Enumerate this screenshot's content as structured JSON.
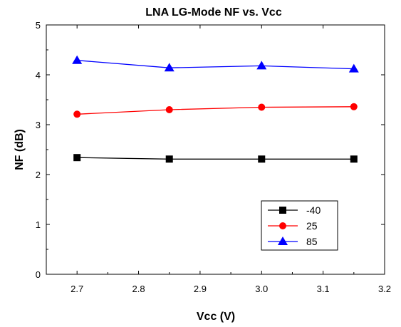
{
  "chart_data": {
    "type": "line",
    "title": "LNA LG-Mode NF vs. Vcc",
    "xlabel": "Vcc (V)",
    "ylabel": "NF (dB)",
    "xlim": [
      2.65,
      3.2
    ],
    "ylim": [
      0,
      5
    ],
    "xticks": [
      2.7,
      2.8,
      2.9,
      3.0,
      3.1,
      3.2
    ],
    "xtick_labels": [
      "2.7",
      "2.8",
      "2.9",
      "3.0",
      "3.1",
      "3.2"
    ],
    "yticks": [
      0,
      1,
      2,
      3,
      4,
      5
    ],
    "ytick_labels": [
      "0",
      "1",
      "2",
      "3",
      "4",
      "5"
    ],
    "x": [
      2.7,
      2.85,
      3.0,
      3.15
    ],
    "grid": false,
    "legend_position": "lower-right",
    "series": [
      {
        "name": "-40",
        "values": [
          2.34,
          2.31,
          2.31,
          2.31
        ],
        "color": "#000000",
        "marker": "square"
      },
      {
        "name": "25",
        "values": [
          3.21,
          3.3,
          3.35,
          3.36
        ],
        "color": "#ff0000",
        "marker": "circle"
      },
      {
        "name": "85",
        "values": [
          4.29,
          4.14,
          4.18,
          4.12
        ],
        "color": "#0000ff",
        "marker": "triangle"
      }
    ]
  }
}
